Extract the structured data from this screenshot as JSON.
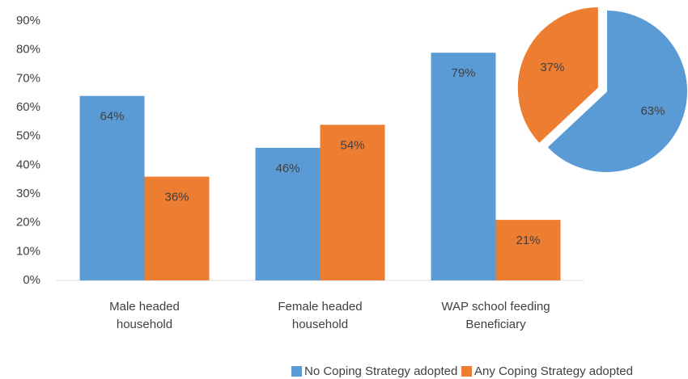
{
  "chart_data": [
    {
      "type": "bar",
      "categories": [
        "Male headed household",
        "Female headed household",
        "WAP school feeding Beneficiary"
      ],
      "series": [
        {
          "name": "No Coping Strategy adopted",
          "color": "#5b9bd5",
          "values": [
            64,
            46,
            79
          ],
          "value_labels": [
            "64%",
            "46%",
            "79%"
          ]
        },
        {
          "name": "Any Coping Strategy adopted",
          "color": "#ed7d31",
          "values": [
            36,
            54,
            21
          ],
          "value_labels": [
            "36%",
            "54%",
            "21%"
          ]
        }
      ],
      "ylim": [
        0,
        90
      ],
      "yticks": [
        {
          "value": 0,
          "label": "0%"
        },
        {
          "value": 10,
          "label": "10%"
        },
        {
          "value": 20,
          "label": "20%"
        },
        {
          "value": 30,
          "label": "30%"
        },
        {
          "value": 40,
          "label": "40%"
        },
        {
          "value": 50,
          "label": "50%"
        },
        {
          "value": 60,
          "label": "60%"
        },
        {
          "value": 70,
          "label": "70%"
        },
        {
          "value": 80,
          "label": "80%"
        },
        {
          "value": 90,
          "label": "90%"
        }
      ],
      "legend": "bottom"
    },
    {
      "type": "pie",
      "values": [
        63,
        37
      ],
      "value_labels": [
        "63%",
        "37%"
      ],
      "colors": [
        "#5b9bd5",
        "#ed7d31"
      ]
    }
  ]
}
